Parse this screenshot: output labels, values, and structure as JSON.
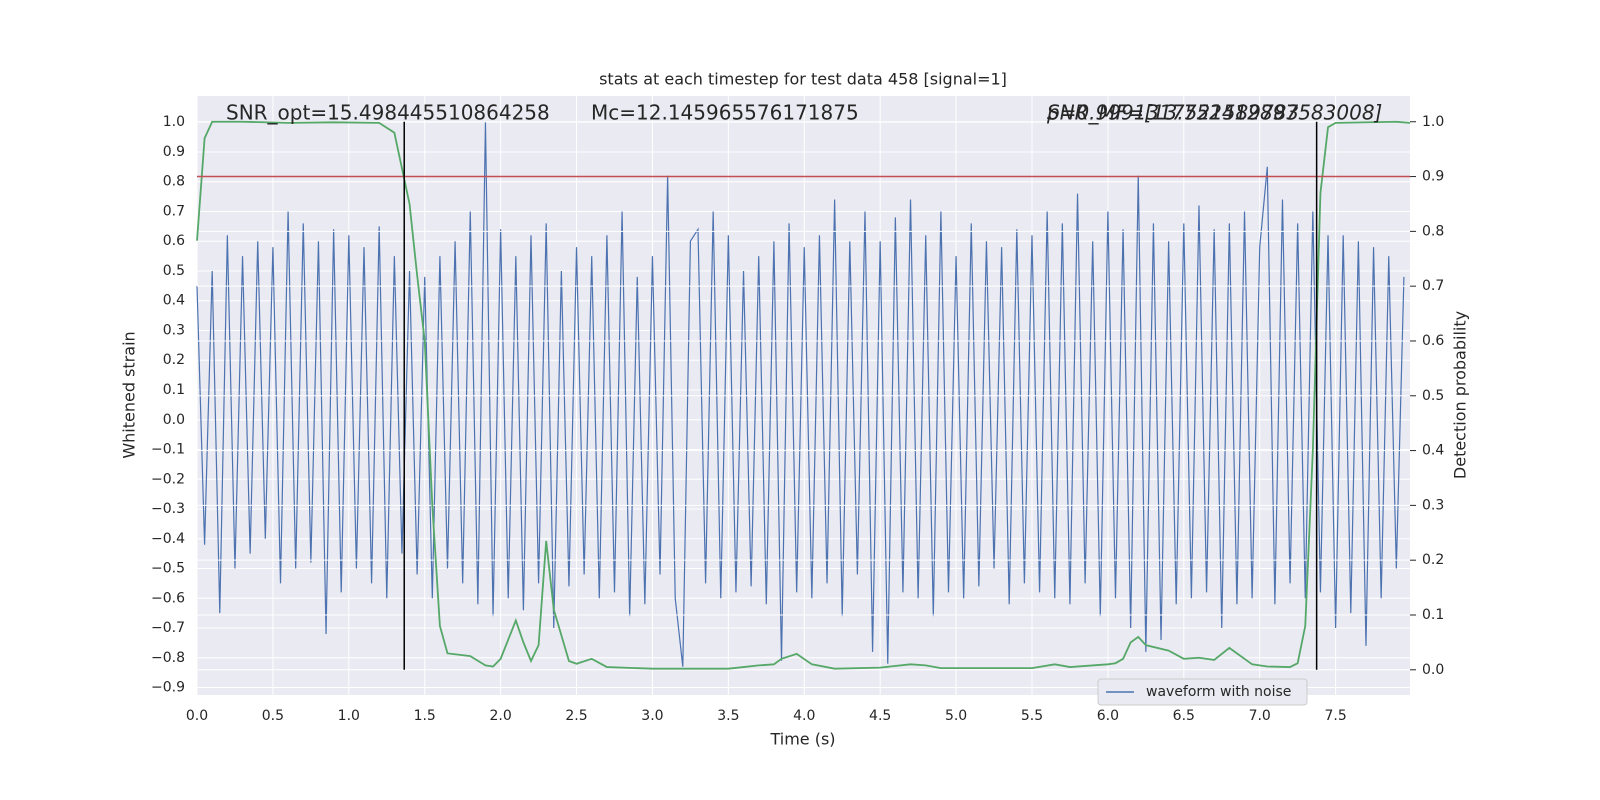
{
  "chart_data": {
    "type": "line",
    "title": "stats at each timestep for test data 458 [signal=1]",
    "xlabel": "Time (s)",
    "ylabel": "Whitened strain",
    "y2label": "Detection probability",
    "annotations": [
      "SNR_opt=15.498445510864258",
      "Mc=12.145965576171875",
      "SNR_MF=[13.752412897583008]",
      "p=0.9991317521589783"
    ],
    "xlim": [
      0,
      7.99
    ],
    "ylim": [
      -0.925,
      1.088
    ],
    "y2lim": [
      -0.046,
      1.047
    ],
    "xticks": [
      {
        "value": 0,
        "label": "0.0"
      },
      {
        "value": 0.5,
        "label": "0.5"
      },
      {
        "value": 1,
        "label": "1.0"
      },
      {
        "value": 1.5,
        "label": "1.5"
      },
      {
        "value": 2,
        "label": "2.0"
      },
      {
        "value": 2.5,
        "label": "2.5"
      },
      {
        "value": 3,
        "label": "3.0"
      },
      {
        "value": 3.5,
        "label": "3.5"
      },
      {
        "value": 4,
        "label": "4.0"
      },
      {
        "value": 4.5,
        "label": "4.5"
      },
      {
        "value": 5,
        "label": "5.0"
      },
      {
        "value": 5.5,
        "label": "5.5"
      },
      {
        "value": 6,
        "label": "6.0"
      },
      {
        "value": 6.5,
        "label": "6.5"
      },
      {
        "value": 7,
        "label": "7.0"
      },
      {
        "value": 7.5,
        "label": "7.5"
      }
    ],
    "yticks": [
      {
        "value": -0.9,
        "label": "−0.9"
      },
      {
        "value": -0.8,
        "label": "−0.8"
      },
      {
        "value": -0.7,
        "label": "−0.7"
      },
      {
        "value": -0.6,
        "label": "−0.6"
      },
      {
        "value": -0.5,
        "label": "−0.5"
      },
      {
        "value": -0.4,
        "label": "−0.4"
      },
      {
        "value": -0.3,
        "label": "−0.3"
      },
      {
        "value": -0.2,
        "label": "−0.2"
      },
      {
        "value": -0.1,
        "label": "−0.1"
      },
      {
        "value": 0,
        "label": "0.0"
      },
      {
        "value": 0.1,
        "label": "0.1"
      },
      {
        "value": 0.2,
        "label": "0.2"
      },
      {
        "value": 0.3,
        "label": "0.3"
      },
      {
        "value": 0.4,
        "label": "0.4"
      },
      {
        "value": 0.5,
        "label": "0.5"
      },
      {
        "value": 0.6,
        "label": "0.6"
      },
      {
        "value": 0.7,
        "label": "0.7"
      },
      {
        "value": 0.8,
        "label": "0.8"
      },
      {
        "value": 0.9,
        "label": "0.9"
      },
      {
        "value": 1,
        "label": "1.0"
      }
    ],
    "y2ticks": [
      {
        "value": 0,
        "label": "0.0"
      },
      {
        "value": 0.1,
        "label": "0.1"
      },
      {
        "value": 0.2,
        "label": "0.2"
      },
      {
        "value": 0.3,
        "label": "0.3"
      },
      {
        "value": 0.4,
        "label": "0.4"
      },
      {
        "value": 0.5,
        "label": "0.5"
      },
      {
        "value": 0.6,
        "label": "0.6"
      },
      {
        "value": 0.7,
        "label": "0.7"
      },
      {
        "value": 0.8,
        "label": "0.8"
      },
      {
        "value": 0.9,
        "label": "0.9"
      },
      {
        "value": 1,
        "label": "1.0"
      }
    ],
    "grid": true,
    "legend": "lower right",
    "hlines": [
      {
        "value": 0.9,
        "axis": "y2",
        "color": "#c44e52"
      }
    ],
    "vlines": [
      {
        "value": 1.365,
        "color": "#000000"
      },
      {
        "value": 7.375,
        "color": "#000000"
      }
    ],
    "series": [
      {
        "name": "waveform with noise",
        "color": "#4c72b0",
        "x": [
          0,
          0.05,
          0.1,
          0.15,
          0.2,
          0.25,
          0.3,
          0.35,
          0.4,
          0.45,
          0.5,
          0.55,
          0.6,
          0.65,
          0.7,
          0.75,
          0.8,
          0.85,
          0.9,
          0.95,
          1,
          1.05,
          1.1,
          1.15,
          1.2,
          1.25,
          1.3,
          1.35,
          1.4,
          1.45,
          1.5,
          1.55,
          1.6,
          1.65,
          1.7,
          1.75,
          1.8,
          1.85,
          1.9,
          1.95,
          2,
          2.05,
          2.1,
          2.15,
          2.2,
          2.25,
          2.3,
          2.35,
          2.4,
          2.45,
          2.5,
          2.55,
          2.6,
          2.65,
          2.7,
          2.75,
          2.8,
          2.85,
          2.9,
          2.95,
          3,
          3.05,
          3.1,
          3.15,
          3.2,
          3.25,
          3.3,
          3.35,
          3.4,
          3.45,
          3.5,
          3.55,
          3.6,
          3.65,
          3.7,
          3.75,
          3.8,
          3.85,
          3.9,
          3.95,
          4,
          4.05,
          4.1,
          4.15,
          4.2,
          4.25,
          4.3,
          4.35,
          4.4,
          4.45,
          4.5,
          4.55,
          4.6,
          4.65,
          4.7,
          4.75,
          4.8,
          4.85,
          4.9,
          4.95,
          5,
          5.05,
          5.1,
          5.15,
          5.2,
          5.25,
          5.3,
          5.35,
          5.4,
          5.45,
          5.5,
          5.55,
          5.6,
          5.65,
          5.7,
          5.75,
          5.8,
          5.85,
          5.9,
          5.95,
          6,
          6.05,
          6.1,
          6.15,
          6.2,
          6.25,
          6.3,
          6.35,
          6.4,
          6.45,
          6.5,
          6.55,
          6.6,
          6.65,
          6.7,
          6.75,
          6.8,
          6.85,
          6.9,
          6.95,
          7,
          7.05,
          7.1,
          7.15,
          7.2,
          7.25,
          7.3,
          7.35,
          7.4,
          7.45,
          7.5,
          7.55,
          7.6,
          7.65,
          7.7,
          7.75,
          7.8,
          7.85,
          7.9,
          7.95
        ],
        "values": [
          0.45,
          -0.42,
          0.5,
          -0.65,
          0.62,
          -0.5,
          0.55,
          -0.45,
          0.6,
          -0.4,
          0.58,
          -0.55,
          0.7,
          -0.5,
          0.66,
          -0.48,
          0.6,
          -0.72,
          0.64,
          -0.58,
          0.62,
          -0.5,
          0.58,
          -0.55,
          0.65,
          -0.6,
          0.55,
          -0.45,
          0.5,
          -0.52,
          0.48,
          -0.6,
          0.55,
          -0.5,
          0.6,
          -0.55,
          0.7,
          -0.62,
          1.0,
          -0.66,
          0.64,
          -0.6,
          0.55,
          -0.64,
          0.62,
          -0.55,
          0.66,
          -0.7,
          0.5,
          -0.56,
          0.58,
          -0.52,
          0.55,
          -0.6,
          0.62,
          -0.58,
          0.7,
          -0.66,
          0.48,
          -0.62,
          0.55,
          -0.52,
          0.82,
          -0.6,
          -0.83,
          0.6,
          0.64,
          -0.55,
          0.7,
          -0.6,
          0.62,
          -0.58,
          0.5,
          -0.56,
          0.55,
          -0.62,
          0.6,
          -0.81,
          0.66,
          -0.58,
          0.58,
          -0.6,
          0.62,
          -0.55,
          0.74,
          -0.66,
          0.6,
          -0.52,
          0.7,
          -0.78,
          0.6,
          -0.82,
          0.68,
          -0.58,
          0.74,
          -0.6,
          0.62,
          -0.66,
          0.7,
          -0.58,
          0.55,
          -0.6,
          0.66,
          -0.56,
          0.6,
          -0.5,
          0.58,
          -0.62,
          0.64,
          -0.55,
          0.62,
          -0.58,
          0.7,
          -0.6,
          0.66,
          -0.62,
          0.76,
          -0.55,
          0.6,
          -0.66,
          0.7,
          -0.6,
          0.64,
          -0.7,
          0.82,
          -0.78,
          0.66,
          -0.74,
          0.6,
          -0.62,
          0.66,
          -0.6,
          0.72,
          -0.58,
          0.64,
          -0.7,
          0.66,
          -0.62,
          0.7,
          -0.6,
          0.58,
          0.85,
          -0.62,
          0.74,
          -0.55,
          0.66,
          -0.6,
          0.7,
          -0.58,
          0.62,
          -0.7,
          0.62,
          -0.65,
          0.6,
          -0.76,
          0.58,
          -0.6,
          0.55,
          -0.5,
          0.48
        ]
      },
      {
        "color": "#55a868",
        "axis": "y2",
        "x": [
          0,
          0.05,
          0.1,
          0.3,
          0.6,
          0.9,
          1.2,
          1.3,
          1.4,
          1.45,
          1.5,
          1.55,
          1.6,
          1.65,
          1.8,
          1.9,
          1.95,
          2.0,
          2.1,
          2.15,
          2.2,
          2.25,
          2.3,
          2.35,
          2.45,
          2.5,
          2.6,
          2.7,
          3.0,
          3.5,
          3.6,
          3.7,
          3.8,
          3.85,
          3.95,
          4.05,
          4.2,
          4.5,
          4.7,
          4.8,
          4.9,
          5.5,
          5.65,
          5.75,
          6.0,
          6.05,
          6.1,
          6.15,
          6.2,
          6.25,
          6.4,
          6.5,
          6.6,
          6.7,
          6.8,
          6.85,
          6.95,
          7.05,
          7.2,
          7.25,
          7.3,
          7.35,
          7.4,
          7.45,
          7.5,
          7.9,
          7.99
        ],
        "values": [
          0.783,
          0.97,
          1.0,
          1.0,
          0.998,
          0.999,
          0.998,
          0.98,
          0.85,
          0.72,
          0.6,
          0.3,
          0.08,
          0.03,
          0.025,
          0.008,
          0.006,
          0.02,
          0.09,
          0.05,
          0.016,
          0.045,
          0.235,
          0.11,
          0.016,
          0.011,
          0.02,
          0.005,
          0.002,
          0.002,
          0.005,
          0.008,
          0.01,
          0.02,
          0.029,
          0.01,
          0.002,
          0.004,
          0.01,
          0.008,
          0.003,
          0.003,
          0.01,
          0.005,
          0.01,
          0.012,
          0.02,
          0.05,
          0.06,
          0.045,
          0.035,
          0.02,
          0.022,
          0.018,
          0.04,
          0.03,
          0.01,
          0.006,
          0.005,
          0.012,
          0.08,
          0.4,
          0.87,
          0.99,
          0.998,
          1.0,
          0.998
        ]
      }
    ]
  }
}
